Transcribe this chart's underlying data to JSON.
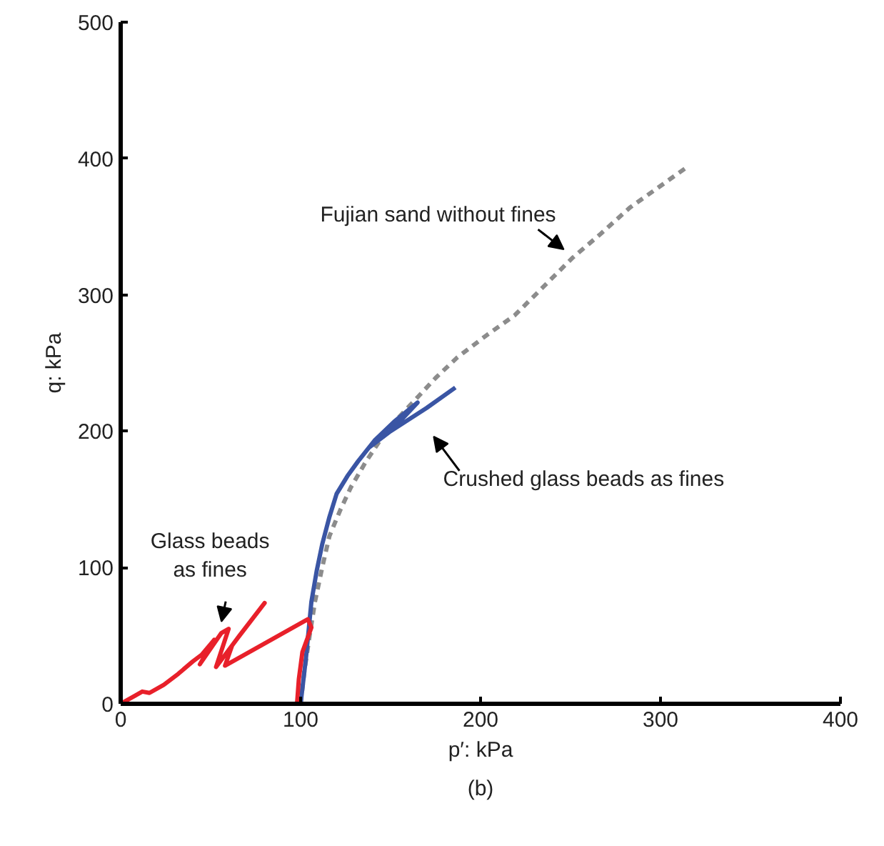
{
  "chart_data": {
    "type": "line",
    "xlabel": "p′: kPa",
    "ylabel": "q: kPa",
    "xlim": [
      0,
      400
    ],
    "ylim": [
      0,
      500
    ],
    "xticks": [
      0,
      100,
      200,
      300,
      400
    ],
    "yticks": [
      0,
      100,
      200,
      300,
      400,
      500
    ],
    "grid": false,
    "series": [
      {
        "name": "Fujian sand without fines",
        "color": "#8c8c8c",
        "line_style": "dashed",
        "x": [
          100,
          102,
          105,
          108,
          112,
          116,
          122,
          128,
          136,
          144,
          153,
          163,
          175,
          187,
          203,
          219,
          235,
          251,
          267,
          283,
          298,
          314
        ],
        "values": [
          0,
          23,
          50,
          75,
          100,
          123,
          142,
          159,
          177,
          193,
          208,
          222,
          239,
          254,
          270,
          285,
          306,
          327,
          345,
          364,
          378,
          393
        ]
      },
      {
        "name": "Crushed glass beads as fines",
        "color": "#3a55a4",
        "line_style": "solid",
        "x": [
          100,
          103,
          106,
          109,
          112,
          116,
          120,
          126,
          132,
          141,
          152,
          165,
          150,
          138,
          150,
          170,
          186
        ],
        "values": [
          0,
          34,
          75,
          98,
          117,
          137,
          154,
          167,
          178,
          193,
          207,
          221,
          200,
          188,
          200,
          217,
          232
        ]
      },
      {
        "name": "Glass beads\nas fines",
        "color": "#e8202a",
        "line_style": "solid",
        "x": [
          0,
          8,
          12,
          16,
          24,
          32,
          40,
          45,
          52,
          44,
          56,
          60,
          53,
          66,
          80,
          62,
          58,
          104,
          106,
          101,
          99,
          98
        ],
        "values": [
          0,
          6,
          9,
          8,
          14,
          22,
          31,
          36,
          47,
          29,
          52,
          55,
          27,
          50,
          74,
          43,
          28,
          62,
          56,
          38,
          18,
          0
        ]
      }
    ],
    "annotations": [
      "(b)"
    ]
  }
}
